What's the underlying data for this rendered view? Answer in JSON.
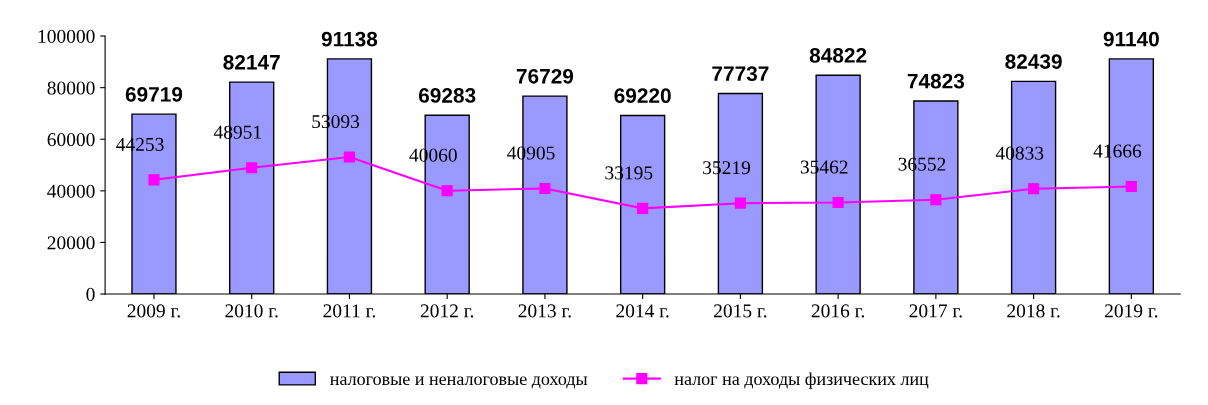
{
  "chart_data": {
    "type": "bar",
    "categories": [
      "2009 г.",
      "2010 г.",
      "2011 г.",
      "2012 г.",
      "2013 г.",
      "2014 г.",
      "2015 г.",
      "2016 г.",
      "2017 г.",
      "2018 г.",
      "2019 г."
    ],
    "series": [
      {
        "name": "налоговые и неналоговые доходы",
        "color": "#9999ff",
        "values": [
          69719,
          82147,
          91138,
          69283,
          76729,
          69220,
          77737,
          84822,
          74823,
          82439,
          91140
        ]
      },
      {
        "name": "налог на доходы физических лиц",
        "type": "line",
        "color": "#ff00ff",
        "marker": "square",
        "values": [
          44253,
          48951,
          53093,
          40060,
          40905,
          33195,
          35219,
          35462,
          36552,
          40833,
          41666
        ]
      }
    ],
    "ylim": [
      0,
      100000
    ],
    "yticks": [
      0,
      20000,
      40000,
      60000,
      80000,
      100000
    ],
    "data_labels": true,
    "grid": false,
    "legend": "bottom"
  }
}
